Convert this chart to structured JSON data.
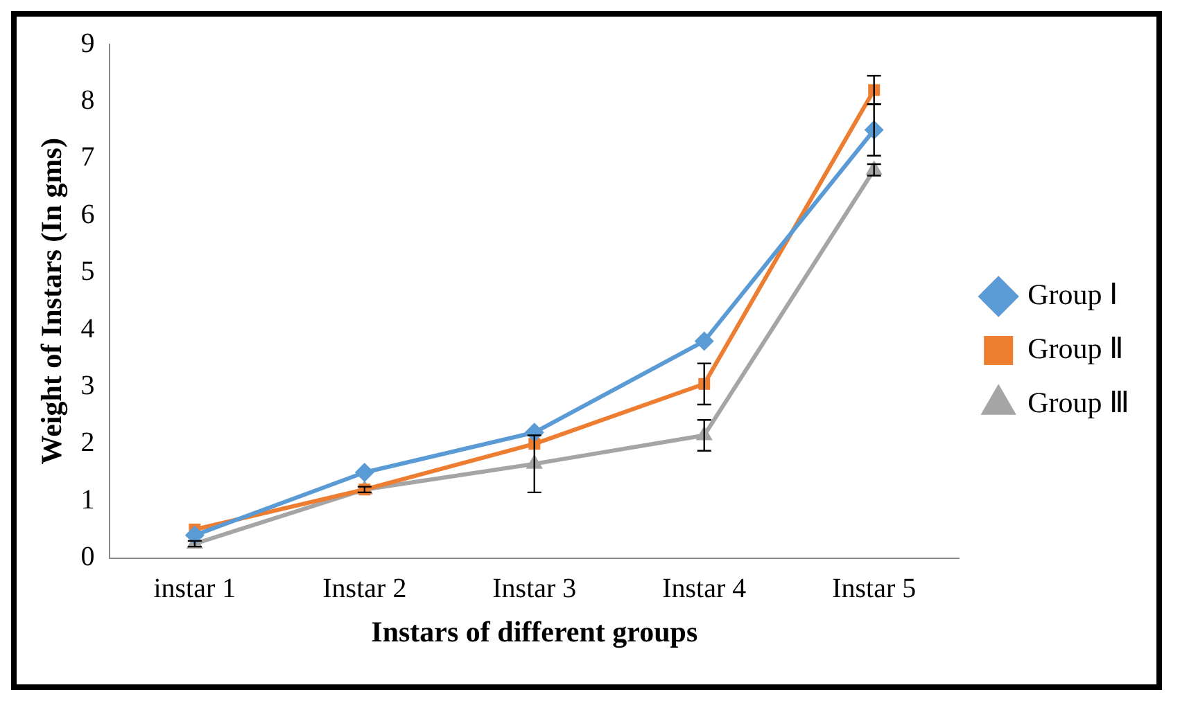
{
  "chart_data": {
    "type": "line",
    "xlabel": "Instars of different groups",
    "ylabel": "Weight of Instars (In gms)",
    "categories": [
      "instar 1",
      "Instar 2",
      "Instar 3",
      "Instar 4",
      "Instar 5"
    ],
    "series": [
      {
        "name": "Group Ⅰ",
        "color": "#5b9bd5",
        "marker": "diamond",
        "values": [
          0.4,
          1.5,
          2.2,
          3.8,
          7.5
        ],
        "errors": [
          null,
          null,
          null,
          null,
          0.45
        ]
      },
      {
        "name": "Group Ⅱ",
        "color": "#ed7d31",
        "marker": "square",
        "values": [
          0.5,
          1.2,
          2.0,
          3.05,
          8.2
        ],
        "errors": [
          null,
          0.05,
          null,
          0.36,
          0.25
        ]
      },
      {
        "name": "Group Ⅲ",
        "color": "#a5a5a5",
        "marker": "triangle",
        "values": [
          0.25,
          1.2,
          1.65,
          2.15,
          6.8
        ],
        "errors": [
          0.05,
          null,
          0.5,
          0.27,
          0.1
        ]
      }
    ],
    "ylim": [
      0,
      9
    ],
    "yticks": [
      0,
      1,
      2,
      3,
      4,
      5,
      6,
      7,
      8,
      9
    ],
    "grid": false,
    "legend": "right"
  }
}
